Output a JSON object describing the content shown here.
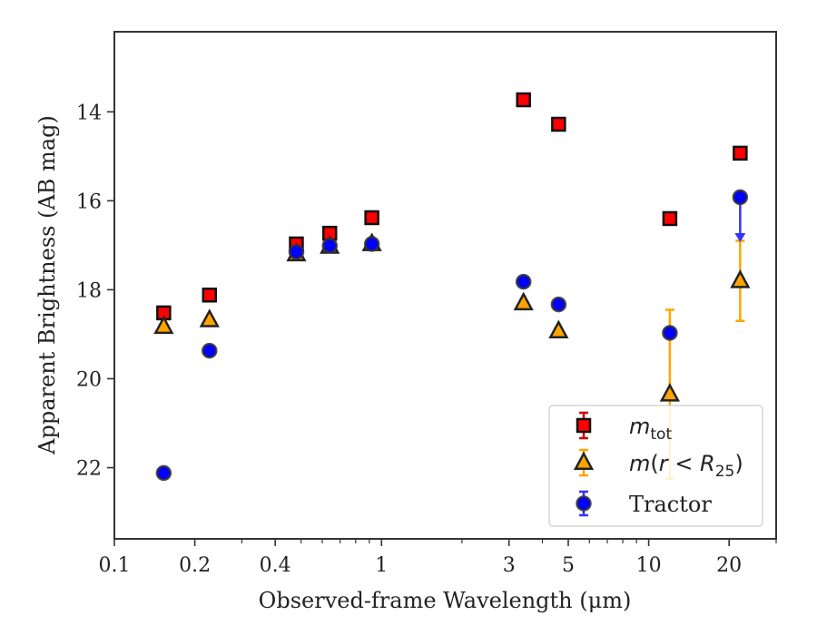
{
  "chart_data": {
    "type": "scatter",
    "xlabel": "Observed-frame Wavelength (μm)",
    "ylabel": "Apparent Brightness (AB mag)",
    "x_scale": "log",
    "xlim": [
      0.1,
      30
    ],
    "ylim": [
      23.6,
      12.2
    ],
    "x_ticks": [
      {
        "value": 0.1,
        "label": "0.1"
      },
      {
        "value": 0.2,
        "label": "0.2"
      },
      {
        "value": 0.4,
        "label": "0.4"
      },
      {
        "value": 1,
        "label": "1"
      },
      {
        "value": 3,
        "label": "3"
      },
      {
        "value": 5,
        "label": "5"
      },
      {
        "value": 10,
        "label": "10"
      },
      {
        "value": 20,
        "label": "20"
      }
    ],
    "y_ticks": [
      {
        "value": 14,
        "label": "14"
      },
      {
        "value": 16,
        "label": "16"
      },
      {
        "value": 18,
        "label": "18"
      },
      {
        "value": 20,
        "label": "20"
      },
      {
        "value": 22,
        "label": "22"
      }
    ],
    "grid": false,
    "legend_position": "lower-right",
    "series": [
      {
        "name": "m_tot",
        "marker": "square",
        "color": "#ff0000",
        "error_color": "#cc0000",
        "points": [
          {
            "x": 0.153,
            "y": 18.52,
            "err": 0.05
          },
          {
            "x": 0.227,
            "y": 18.12,
            "err": 0.05
          },
          {
            "x": 0.48,
            "y": 16.97,
            "err": 0.03
          },
          {
            "x": 0.64,
            "y": 16.73,
            "err": 0.03
          },
          {
            "x": 0.92,
            "y": 16.38,
            "err": 0.03
          },
          {
            "x": 3.4,
            "y": 13.73,
            "err": 0.03
          },
          {
            "x": 4.6,
            "y": 14.28,
            "err": 0.03
          },
          {
            "x": 12.0,
            "y": 16.4,
            "err": 0.05
          },
          {
            "x": 22.0,
            "y": 14.93,
            "err": 0.05
          }
        ]
      },
      {
        "name": "m(r < R25)",
        "marker": "triangle",
        "color": "#ffa500",
        "error_color": "#ffa500",
        "points": [
          {
            "x": 0.153,
            "y": 18.83,
            "err": 0.05
          },
          {
            "x": 0.227,
            "y": 18.68,
            "err": 0.05
          },
          {
            "x": 0.48,
            "y": 17.2,
            "err": 0.03
          },
          {
            "x": 0.64,
            "y": 17.03,
            "err": 0.03
          },
          {
            "x": 0.92,
            "y": 16.97,
            "err": 0.03
          },
          {
            "x": 3.4,
            "y": 18.3,
            "err": 0.05
          },
          {
            "x": 4.6,
            "y": 18.93,
            "err": 0.05
          },
          {
            "x": 12.0,
            "y": 20.35,
            "err": 1.9
          },
          {
            "x": 22.0,
            "y": 17.8,
            "err": 0.9
          }
        ]
      },
      {
        "name": "Tractor",
        "marker": "circle",
        "color": "#0000ff",
        "error_color": "#3333ff",
        "points": [
          {
            "x": 0.153,
            "y": 22.12,
            "err": 0.05
          },
          {
            "x": 0.227,
            "y": 19.37,
            "err": 0.05
          },
          {
            "x": 0.48,
            "y": 17.15,
            "err": 0.03
          },
          {
            "x": 0.64,
            "y": 17.01,
            "err": 0.03
          },
          {
            "x": 0.92,
            "y": 16.97,
            "err": 0.03
          },
          {
            "x": 3.4,
            "y": 17.82,
            "err": 0.03
          },
          {
            "x": 4.6,
            "y": 18.33,
            "err": 0.03
          },
          {
            "x": 12.0,
            "y": 18.97,
            "err": 0.05
          },
          {
            "x": 22.0,
            "y": 15.92,
            "err": 0.05,
            "upper_limit": true,
            "limit_to": 16.85
          }
        ]
      }
    ]
  }
}
